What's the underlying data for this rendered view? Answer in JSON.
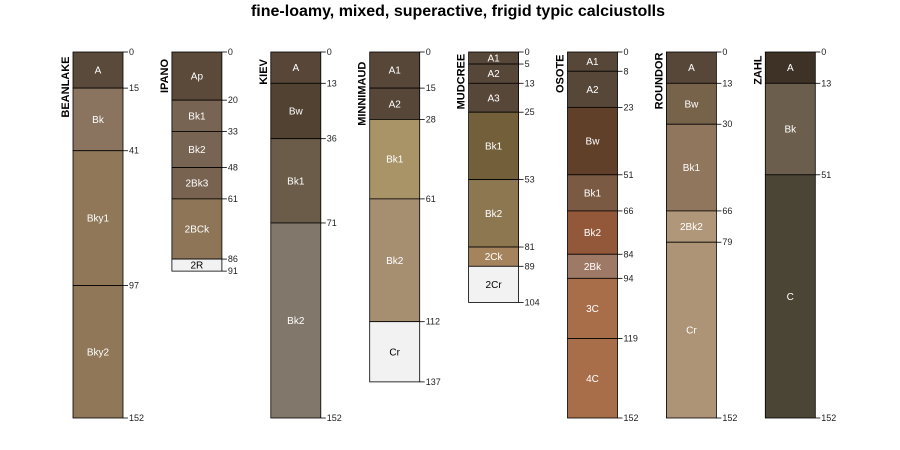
{
  "title": "fine-loamy, mixed, superactive, frigid typic calciustolls",
  "chart_data": {
    "type": "soil-profile-sketch",
    "title": "fine-loamy, mixed, superactive, frigid typic calciustolls",
    "depth_units": "cm",
    "depth_max": 152,
    "profiles": [
      {
        "name": "BEANLAKE",
        "horizons": [
          {
            "name": "A",
            "top": 0,
            "bottom": 15,
            "color": "#5a4a3b"
          },
          {
            "name": "Bk",
            "top": 15,
            "bottom": 41,
            "color": "#8a7460"
          },
          {
            "name": "Bky1",
            "top": 41,
            "bottom": 97,
            "color": "#8f7758"
          },
          {
            "name": "Bky2",
            "top": 97,
            "bottom": 152,
            "color": "#8f7758"
          }
        ]
      },
      {
        "name": "IPANO",
        "horizons": [
          {
            "name": "Ap",
            "top": 0,
            "bottom": 20,
            "color": "#5b4a3a"
          },
          {
            "name": "Bk1",
            "top": 20,
            "bottom": 33,
            "color": "#786452"
          },
          {
            "name": "Bk2",
            "top": 33,
            "bottom": 48,
            "color": "#786452"
          },
          {
            "name": "2Bk3",
            "top": 48,
            "bottom": 61,
            "color": "#776350"
          },
          {
            "name": "2BCk",
            "top": 61,
            "bottom": 86,
            "color": "#8f7557"
          },
          {
            "name": "2R",
            "top": 86,
            "bottom": 91,
            "color": "#f2f2f2"
          }
        ]
      },
      {
        "name": "KIEV",
        "horizons": [
          {
            "name": "A",
            "top": 0,
            "bottom": 13,
            "color": "#584739"
          },
          {
            "name": "Bw",
            "top": 13,
            "bottom": 36,
            "color": "#524232"
          },
          {
            "name": "Bk1",
            "top": 36,
            "bottom": 71,
            "color": "#6a5c49"
          },
          {
            "name": "Bk2",
            "top": 71,
            "bottom": 152,
            "color": "#82776b"
          }
        ]
      },
      {
        "name": "MINNIMAUD",
        "horizons": [
          {
            "name": "A1",
            "top": 0,
            "bottom": 15,
            "color": "#574738"
          },
          {
            "name": "A2",
            "top": 15,
            "bottom": 28,
            "color": "#574738"
          },
          {
            "name": "Bk1",
            "top": 28,
            "bottom": 61,
            "color": "#a99468"
          },
          {
            "name": "Bk2",
            "top": 61,
            "bottom": 112,
            "color": "#a68f71"
          },
          {
            "name": "Cr",
            "top": 112,
            "bottom": 137,
            "color": "#f2f2f2"
          }
        ]
      },
      {
        "name": "MUDCREE",
        "horizons": [
          {
            "name": "A1",
            "top": 0,
            "bottom": 5,
            "color": "#574738"
          },
          {
            "name": "A2",
            "top": 5,
            "bottom": 13,
            "color": "#574738"
          },
          {
            "name": "A3",
            "top": 13,
            "bottom": 25,
            "color": "#574738"
          },
          {
            "name": "Bk1",
            "top": 25,
            "bottom": 53,
            "color": "#735f3a"
          },
          {
            "name": "Bk2",
            "top": 53,
            "bottom": 81,
            "color": "#8d7751"
          },
          {
            "name": "2Ck",
            "top": 81,
            "bottom": 89,
            "color": "#a5845d"
          },
          {
            "name": "2Cr",
            "top": 89,
            "bottom": 104,
            "color": "#f2f2f2"
          }
        ]
      },
      {
        "name": "OSOTE",
        "horizons": [
          {
            "name": "A1",
            "top": 0,
            "bottom": 8,
            "color": "#574738"
          },
          {
            "name": "A2",
            "top": 8,
            "bottom": 23,
            "color": "#574738"
          },
          {
            "name": "Bw",
            "top": 23,
            "bottom": 51,
            "color": "#604029"
          },
          {
            "name": "Bk1",
            "top": 51,
            "bottom": 66,
            "color": "#7a5a42"
          },
          {
            "name": "Bk2",
            "top": 66,
            "bottom": 84,
            "color": "#93583a"
          },
          {
            "name": "2Bk",
            "top": 84,
            "bottom": 94,
            "color": "#9e7a66"
          },
          {
            "name": "3C",
            "top": 94,
            "bottom": 119,
            "color": "#a86e4a"
          },
          {
            "name": "4C",
            "top": 119,
            "bottom": 152,
            "color": "#a86e4a"
          }
        ]
      },
      {
        "name": "ROUNDOR",
        "horizons": [
          {
            "name": "A",
            "top": 0,
            "bottom": 13,
            "color": "#574738"
          },
          {
            "name": "Bw",
            "top": 13,
            "bottom": 30,
            "color": "#77624a"
          },
          {
            "name": "Bk1",
            "top": 30,
            "bottom": 66,
            "color": "#8f765d"
          },
          {
            "name": "2Bk2",
            "top": 66,
            "bottom": 79,
            "color": "#b19779"
          },
          {
            "name": "Cr",
            "top": 79,
            "bottom": 152,
            "color": "#ad9477"
          }
        ]
      },
      {
        "name": "ZAHL",
        "horizons": [
          {
            "name": "A",
            "top": 0,
            "bottom": 13,
            "color": "#3e3226"
          },
          {
            "name": "Bk",
            "top": 13,
            "bottom": 51,
            "color": "#6b5e4c"
          },
          {
            "name": "C",
            "top": 51,
            "bottom": 152,
            "color": "#4b4535"
          }
        ]
      }
    ]
  }
}
